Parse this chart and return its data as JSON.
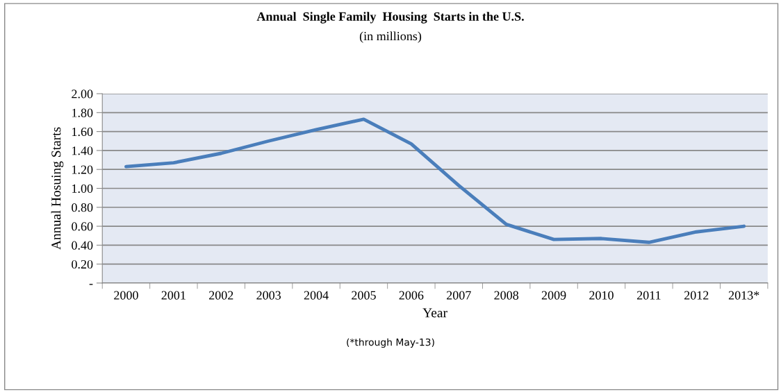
{
  "chart_data": {
    "type": "line",
    "title": "Annual  Single Family  Housing  Starts in the U.S.",
    "subtitle": "(in millions)",
    "xlabel": "Year",
    "ylabel": "Annual Hosuing Starts",
    "categories": [
      "2000",
      "2001",
      "2002",
      "2003",
      "2004",
      "2005",
      "2006",
      "2007",
      "2008",
      "2009",
      "2010",
      "2011",
      "2012",
      "2013*"
    ],
    "series": [
      {
        "color": "#4a7ebb",
        "values": [
          1.23,
          1.27,
          1.37,
          1.5,
          1.62,
          1.73,
          1.47,
          1.03,
          0.62,
          0.46,
          0.47,
          0.43,
          0.54,
          0.6
        ]
      }
    ],
    "ylim": [
      0,
      2
    ],
    "yticks": [
      {
        "value": 0,
        "label": "-"
      },
      {
        "value": 0.2,
        "label": "0.20"
      },
      {
        "value": 0.4,
        "label": "0.40"
      },
      {
        "value": 0.6,
        "label": "0.60"
      },
      {
        "value": 0.8,
        "label": "0.80"
      },
      {
        "value": 1.0,
        "label": "1.00"
      },
      {
        "value": 1.2,
        "label": "1.20"
      },
      {
        "value": 1.4,
        "label": "1.40"
      },
      {
        "value": 1.6,
        "label": "1.60"
      },
      {
        "value": 1.8,
        "label": "1.80"
      },
      {
        "value": 2.0,
        "label": "2.00"
      }
    ],
    "grid": "y",
    "legend": false,
    "marker": "none",
    "line_style": "solid",
    "annotations": [
      "(*through May-13)"
    ]
  }
}
